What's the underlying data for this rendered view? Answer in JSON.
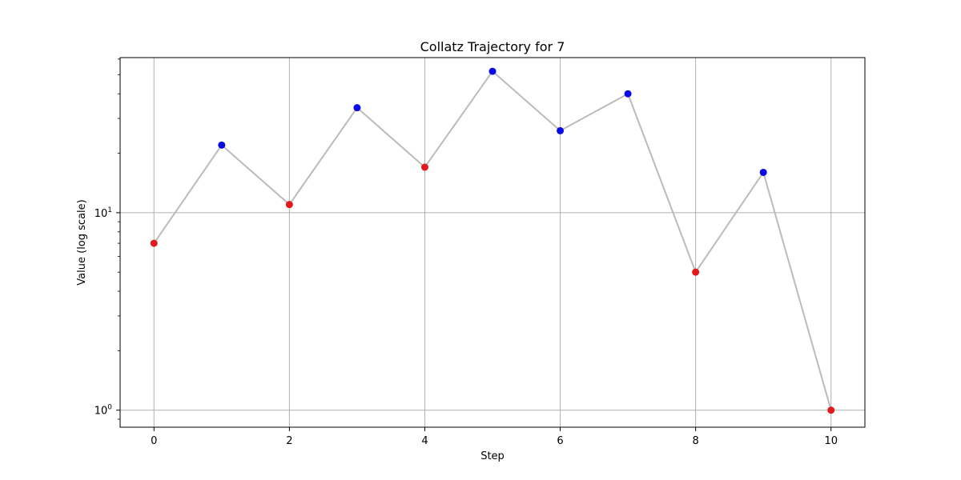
{
  "chart_data": {
    "type": "line",
    "title": "Collatz Trajectory for 7",
    "xlabel": "Step",
    "ylabel": "Value (log scale)",
    "yscale": "log",
    "x": [
      0,
      1,
      2,
      3,
      4,
      5,
      6,
      7,
      8,
      9,
      10
    ],
    "values": [
      7,
      22,
      11,
      34,
      17,
      52,
      26,
      40,
      5,
      16,
      1
    ],
    "xlim": [
      -0.5,
      10.5
    ],
    "ylim": [
      0.82,
      61
    ],
    "xticks": [
      0,
      2,
      4,
      6,
      8,
      10
    ],
    "xtick_labels": [
      "0",
      "2",
      "4",
      "6",
      "8",
      "10"
    ],
    "yticks": [
      1,
      10
    ],
    "ytick_labels": [
      {
        "base": "10",
        "exp": "0"
      },
      {
        "base": "10",
        "exp": "1"
      }
    ],
    "grid": true,
    "line_color": "#bbbbbb",
    "point_colors": {
      "odd": "#e31a1c",
      "even": "#0a0ae6"
    }
  }
}
